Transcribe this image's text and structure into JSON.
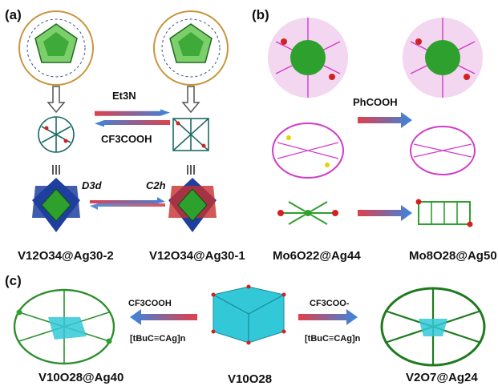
{
  "panels": {
    "a": {
      "label": "(a)",
      "forward_reagent": "Et3N",
      "reverse_reagent": "CF3COOH",
      "symmetry_left": "D3d",
      "symmetry_right": "C2h",
      "caption_left": "V12O34@Ag30-2",
      "caption_right": "V12O34@Ag30-1"
    },
    "b": {
      "label": "(b)",
      "reagent": "PhCOOH",
      "caption_left": "Mo6O22@Ag44",
      "caption_right": "Mo8O28@Ag50"
    },
    "c": {
      "label": "(c)",
      "left_reagent_top": "CF3COOH",
      "left_reagent_bottom": "[tBuC≡CAg]n",
      "right_reagent_top": "CF3COO-",
      "right_reagent_bottom": "[tBuC≡CAg]n",
      "caption_left": "V10O28@Ag40",
      "caption_center": "V10O28",
      "caption_right": "V2O7@Ag24"
    }
  },
  "colors": {
    "silver_green": "#2ea02e",
    "polyhedron_green": "#7ccf6a",
    "vanadium_cyan": "#33c8d8",
    "blue_octahedra": "#1f3f9e",
    "oxygen_red": "#d42020",
    "bond_magenta": "#d23cc8",
    "arrow_red": "#e0404a",
    "arrow_blue": "#3a86e0"
  }
}
